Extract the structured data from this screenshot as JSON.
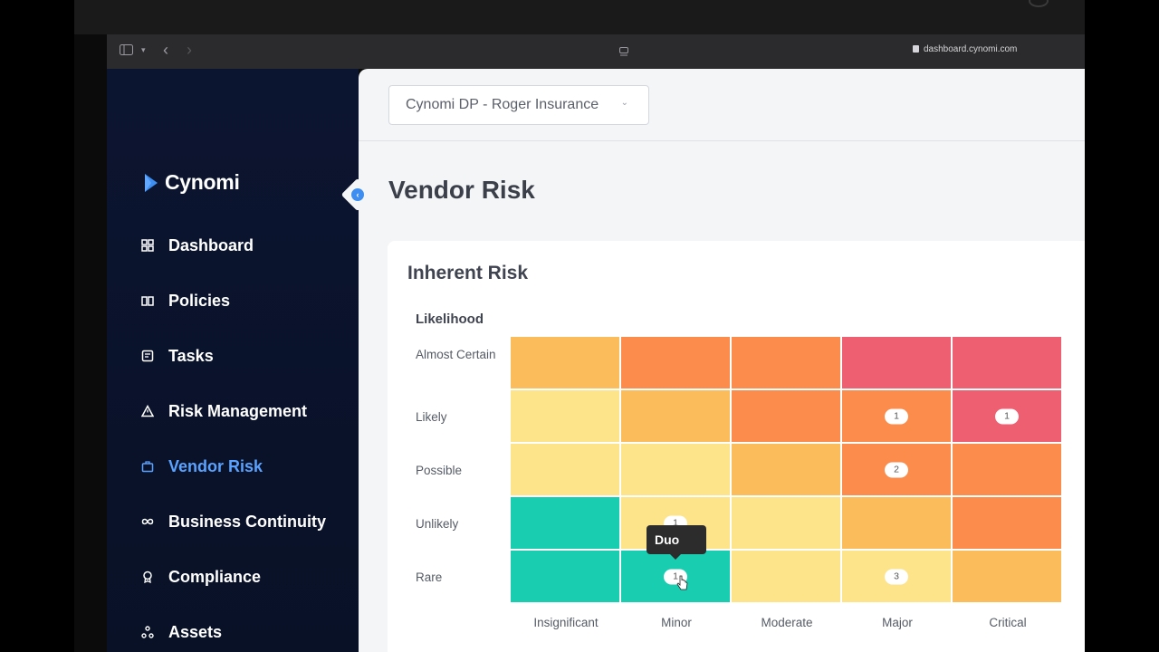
{
  "browser": {
    "url": "dashboard.cynomi.com"
  },
  "sidebar": {
    "logo_text": "Cynomi",
    "items": [
      {
        "label": "Dashboard",
        "icon": "dashboard-icon"
      },
      {
        "label": "Policies",
        "icon": "policies-icon"
      },
      {
        "label": "Tasks",
        "icon": "tasks-icon"
      },
      {
        "label": "Risk Management",
        "icon": "warning-triangle-icon"
      },
      {
        "label": "Vendor Risk",
        "icon": "briefcase-icon",
        "active": true
      },
      {
        "label": "Business Continuity",
        "icon": "infinity-icon"
      },
      {
        "label": "Compliance",
        "icon": "badge-icon"
      },
      {
        "label": "Assets",
        "icon": "assets-icon"
      }
    ]
  },
  "header": {
    "org_select": "Cynomi DP - Roger Insurance"
  },
  "page": {
    "title": "Vendor Risk"
  },
  "card": {
    "title": "Inherent Risk",
    "likelihood_label": "Likelihood",
    "rows": [
      {
        "label": "Almost Certain"
      },
      {
        "label": "Likely"
      },
      {
        "label": "Possible"
      },
      {
        "label": "Unlikely"
      },
      {
        "label": "Rare"
      }
    ],
    "columns": [
      {
        "label": "Insignificant"
      },
      {
        "label": "Minor"
      },
      {
        "label": "Moderate"
      },
      {
        "label": "Major"
      },
      {
        "label": "Critical"
      }
    ],
    "cells": [
      [
        {
          "color": "#fbbd5b"
        },
        {
          "color": "#fb8c4c"
        },
        {
          "color": "#fb8c4c"
        },
        {
          "color": "#ee5f72"
        },
        {
          "color": "#ee5f72"
        }
      ],
      [
        {
          "color": "#fde48a"
        },
        {
          "color": "#fbbd5b"
        },
        {
          "color": "#fb8c4c"
        },
        {
          "color": "#fb8c4c",
          "count": "1"
        },
        {
          "color": "#ee5f72",
          "count": "1"
        }
      ],
      [
        {
          "color": "#fde48a"
        },
        {
          "color": "#fde48a"
        },
        {
          "color": "#fbbd5b"
        },
        {
          "color": "#fb8c4c",
          "count": "2"
        },
        {
          "color": "#fb8c4c"
        }
      ],
      [
        {
          "color": "#18cdb0"
        },
        {
          "color": "#fde48a",
          "count": "1"
        },
        {
          "color": "#fde48a"
        },
        {
          "color": "#fbbd5b"
        },
        {
          "color": "#fb8c4c"
        }
      ],
      [
        {
          "color": "#18cdb0"
        },
        {
          "color": "#18cdb0",
          "count": "1"
        },
        {
          "color": "#fde48a"
        },
        {
          "color": "#fde48a",
          "count": "3"
        },
        {
          "color": "#fbbd5b"
        }
      ]
    ],
    "tooltip": "Duo"
  }
}
